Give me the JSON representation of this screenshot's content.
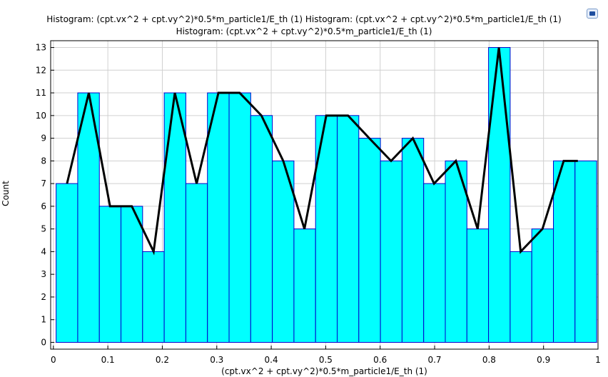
{
  "titles": {
    "line1": "Histogram: (cpt.vx^2 + cpt.vy^2)*0.5*m_particle1/E_th (1)  Histogram: (cpt.vx^2 + cpt.vy^2)*0.5*m_particle1/E_th (1)",
    "line2": "Histogram: (cpt.vx^2 + cpt.vy^2)*0.5*m_particle1/E_th (1)"
  },
  "chart_data": {
    "type": "bar",
    "title": "Histogram: (cpt.vx^2 + cpt.vy^2)*0.5*m_particle1/E_th (1)",
    "xlabel": "(cpt.vx^2 + cpt.vy^2)*0.5*m_particle1/E_th (1)",
    "ylabel": "Count",
    "xlim": [
      -0.005,
      1.0
    ],
    "ylim": [
      -0.3,
      13.3
    ],
    "x_ticks": [
      "0",
      "0.1",
      "0.2",
      "0.3",
      "0.4",
      "0.5",
      "0.6",
      "0.7",
      "0.8",
      "0.9",
      "1"
    ],
    "x_tick_values": [
      0,
      0.1,
      0.2,
      0.3,
      0.4,
      0.5,
      0.6,
      0.7,
      0.8,
      0.9,
      1.0
    ],
    "y_ticks": [
      "0",
      "1",
      "2",
      "3",
      "4",
      "5",
      "6",
      "7",
      "8",
      "9",
      "10",
      "11",
      "12",
      "13"
    ],
    "y_tick_values": [
      0,
      1,
      2,
      3,
      4,
      5,
      6,
      7,
      8,
      9,
      10,
      11,
      12,
      13
    ],
    "grid": true,
    "bin_start": 0.005,
    "bin_width": 0.0397,
    "values": [
      7,
      11,
      6,
      6,
      4,
      11,
      7,
      11,
      11,
      10,
      8,
      5,
      10,
      10,
      9,
      8,
      9,
      7,
      8,
      5,
      13,
      4,
      5,
      8,
      8
    ],
    "line_points": [
      [
        0.025,
        7
      ],
      [
        0.065,
        11
      ],
      [
        0.104,
        6
      ],
      [
        0.144,
        6
      ],
      [
        0.184,
        4
      ],
      [
        0.223,
        11
      ],
      [
        0.263,
        7
      ],
      [
        0.303,
        11
      ],
      [
        0.342,
        11
      ],
      [
        0.382,
        10
      ],
      [
        0.422,
        8
      ],
      [
        0.461,
        5
      ],
      [
        0.501,
        10
      ],
      [
        0.541,
        10
      ],
      [
        0.58,
        9
      ],
      [
        0.62,
        8
      ],
      [
        0.66,
        9
      ],
      [
        0.699,
        7
      ],
      [
        0.739,
        8
      ],
      [
        0.779,
        5
      ],
      [
        0.818,
        13
      ],
      [
        0.858,
        4
      ],
      [
        0.898,
        5
      ],
      [
        0.937,
        8
      ],
      [
        0.963,
        8
      ]
    ],
    "colors": {
      "bar_fill": "#00ffff",
      "bar_edge": "#0000cc",
      "line": "#000000",
      "grid": "#d0d0d0"
    }
  }
}
